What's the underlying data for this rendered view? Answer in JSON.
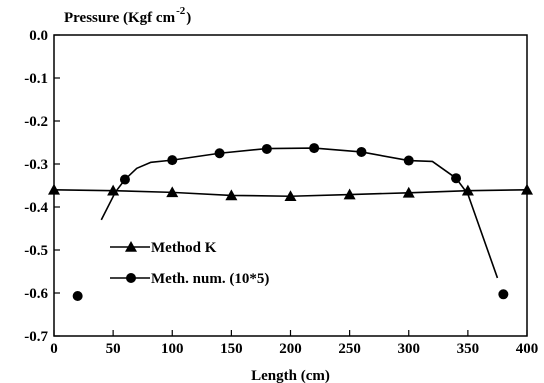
{
  "chart_data": {
    "type": "line",
    "title": "",
    "ylabel": "Pressure (Kgf cm",
    "ylabel_sup": "-2",
    "ylabel_close": ")",
    "xlabel": "Length (cm)",
    "xlim": [
      0,
      400
    ],
    "ylim": [
      -0.7,
      0.0
    ],
    "x_ticks": [
      "0",
      "50",
      "100",
      "150",
      "200",
      "250",
      "300",
      "350",
      "400"
    ],
    "x_tick_values": [
      0,
      50,
      100,
      150,
      200,
      250,
      300,
      350,
      400
    ],
    "y_ticks": [
      "0.0",
      "-0.1",
      "-0.2",
      "-0.3",
      "-0.4",
      "-0.5",
      "-0.6",
      "-0.7"
    ],
    "y_tick_values": [
      0.0,
      -0.1,
      -0.2,
      -0.3,
      -0.4,
      -0.5,
      -0.6,
      -0.7
    ],
    "grid": false,
    "legend_position": "lower-left",
    "series": [
      {
        "name": "Method K",
        "marker": "triangle",
        "points": [
          {
            "x": 0,
            "y": -0.36
          },
          {
            "x": 50,
            "y": -0.362
          },
          {
            "x": 100,
            "y": -0.366
          },
          {
            "x": 150,
            "y": -0.373
          },
          {
            "x": 200,
            "y": -0.375
          },
          {
            "x": 250,
            "y": -0.371
          },
          {
            "x": 300,
            "y": -0.367
          },
          {
            "x": 350,
            "y": -0.362
          },
          {
            "x": 400,
            "y": -0.36
          }
        ],
        "curve": [
          {
            "x": 0,
            "y": -0.36
          },
          {
            "x": 50,
            "y": -0.362
          },
          {
            "x": 100,
            "y": -0.366
          },
          {
            "x": 150,
            "y": -0.373
          },
          {
            "x": 200,
            "y": -0.375
          },
          {
            "x": 250,
            "y": -0.371
          },
          {
            "x": 300,
            "y": -0.367
          },
          {
            "x": 350,
            "y": -0.362
          },
          {
            "x": 400,
            "y": -0.36
          }
        ]
      },
      {
        "name": "Meth. num. (10*5)",
        "marker": "circle",
        "points": [
          {
            "x": 20,
            "y": -0.607
          },
          {
            "x": 60,
            "y": -0.336
          },
          {
            "x": 100,
            "y": -0.291
          },
          {
            "x": 140,
            "y": -0.275
          },
          {
            "x": 180,
            "y": -0.265
          },
          {
            "x": 220,
            "y": -0.263
          },
          {
            "x": 260,
            "y": -0.272
          },
          {
            "x": 300,
            "y": -0.292
          },
          {
            "x": 340,
            "y": -0.333
          },
          {
            "x": 380,
            "y": -0.603
          }
        ],
        "curve": [
          {
            "x": 40,
            "y": -0.43
          },
          {
            "x": 52,
            "y": -0.365
          },
          {
            "x": 60,
            "y": -0.336
          },
          {
            "x": 70,
            "y": -0.31
          },
          {
            "x": 82,
            "y": -0.296
          },
          {
            "x": 100,
            "y": -0.291
          },
          {
            "x": 140,
            "y": -0.275
          },
          {
            "x": 180,
            "y": -0.264
          },
          {
            "x": 220,
            "y": -0.263
          },
          {
            "x": 260,
            "y": -0.272
          },
          {
            "x": 300,
            "y": -0.292
          },
          {
            "x": 320,
            "y": -0.294
          },
          {
            "x": 340,
            "y": -0.333
          },
          {
            "x": 350,
            "y": -0.37
          },
          {
            "x": 375,
            "y": -0.565
          }
        ]
      }
    ]
  }
}
